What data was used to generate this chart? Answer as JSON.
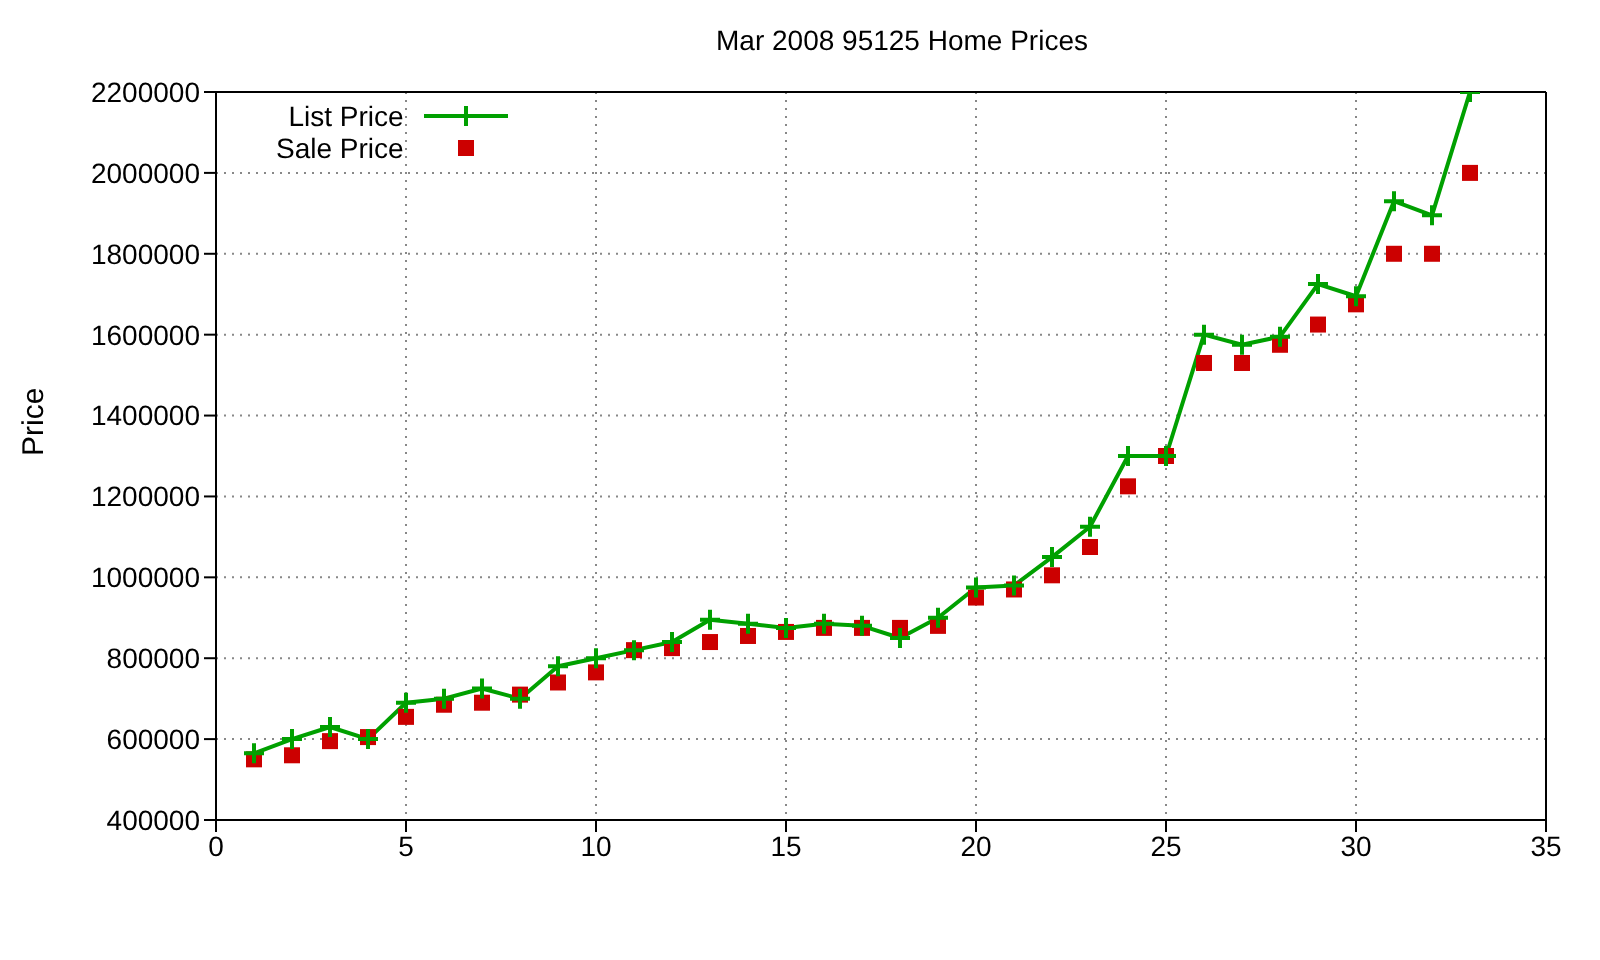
{
  "chart_data": {
    "type": "line",
    "title": "Mar 2008 95125 Home Prices",
    "ylabel": "Price",
    "x": [
      1,
      2,
      3,
      4,
      5,
      6,
      7,
      8,
      9,
      10,
      11,
      12,
      13,
      14,
      15,
      16,
      17,
      18,
      19,
      20,
      21,
      22,
      23,
      24,
      25,
      26,
      27,
      28,
      29,
      30,
      31,
      32,
      33
    ],
    "series": [
      {
        "name": "List Price",
        "marker": "cross",
        "color": "#00a000",
        "values": [
          565000,
          600000,
          630000,
          600000,
          690000,
          700000,
          725000,
          700000,
          780000,
          800000,
          820000,
          840000,
          895000,
          885000,
          875000,
          885000,
          880000,
          850000,
          900000,
          975000,
          980000,
          1050000,
          1125000,
          1300000,
          1300000,
          1600000,
          1575000,
          1595000,
          1725000,
          1695000,
          1930000,
          1895000,
          2200000
        ]
      },
      {
        "name": "Sale Price",
        "type": "scatter",
        "marker": "square",
        "color": "#cc0000",
        "values": [
          550000,
          560000,
          595000,
          605000,
          655000,
          685000,
          690000,
          710000,
          740000,
          765000,
          820000,
          825000,
          840000,
          855000,
          865000,
          875000,
          875000,
          875000,
          880000,
          950000,
          970000,
          1005000,
          1075000,
          1225000,
          1300000,
          1530000,
          1530000,
          1575000,
          1625000,
          1675000,
          1800000,
          1800000,
          2000000
        ]
      }
    ],
    "xlim": [
      0,
      35
    ],
    "xticks": [
      0,
      5,
      10,
      15,
      20,
      25,
      30,
      35
    ],
    "ylim": [
      400000,
      2200000
    ],
    "yticks": [
      400000,
      600000,
      800000,
      1000000,
      1200000,
      1400000,
      1600000,
      1800000,
      2000000,
      2200000
    ],
    "grid": true,
    "legend": "top left"
  }
}
